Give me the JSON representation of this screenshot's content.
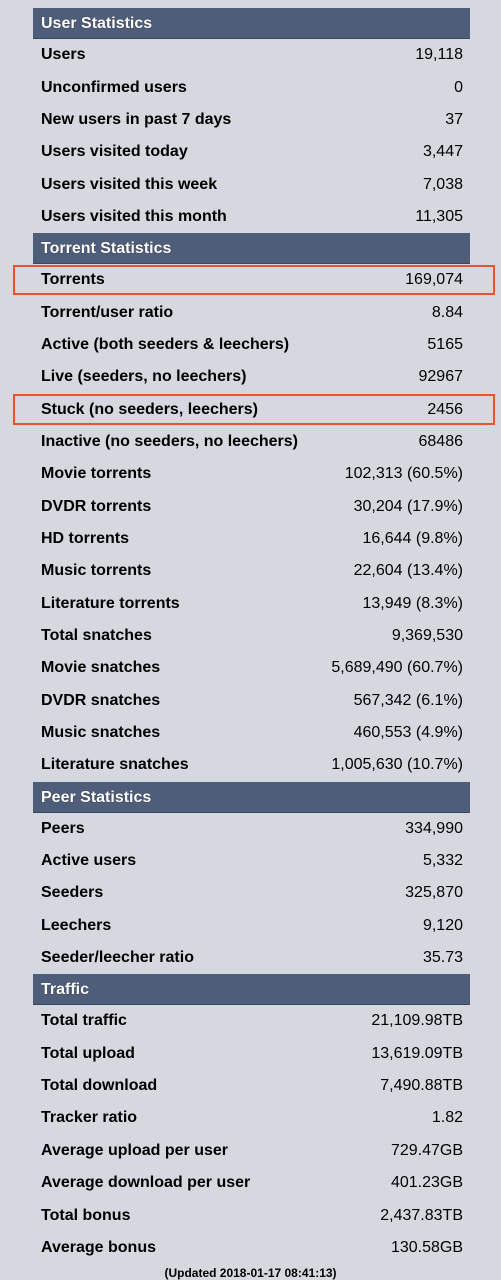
{
  "sections": [
    {
      "title": "User Statistics",
      "rows": [
        {
          "label": "Users",
          "value": "19,118"
        },
        {
          "label": "Unconfirmed users",
          "value": "0"
        },
        {
          "label": "New users in past 7 days",
          "value": "37"
        },
        {
          "label": "Users visited today",
          "value": "3,447"
        },
        {
          "label": "Users visited this week",
          "value": "7,038"
        },
        {
          "label": "Users visited this month",
          "value": "11,305"
        }
      ]
    },
    {
      "title": "Torrent Statistics",
      "rows": [
        {
          "label": "Torrents",
          "value": "169,074",
          "highlight": true
        },
        {
          "label": "Torrent/user ratio",
          "value": "8.84"
        },
        {
          "label": "Active (both seeders & leechers)",
          "value": "5165"
        },
        {
          "label": "Live (seeders, no leechers)",
          "value": "92967"
        },
        {
          "label": "Stuck (no seeders, leechers)",
          "value": "2456",
          "highlight": true
        },
        {
          "label": "Inactive (no seeders, no leechers)",
          "value": "68486"
        },
        {
          "label": "Movie torrents",
          "value": "102,313 (60.5%)"
        },
        {
          "label": "DVDR torrents",
          "value": "30,204 (17.9%)"
        },
        {
          "label": "HD torrents",
          "value": "16,644 (9.8%)"
        },
        {
          "label": "Music torrents",
          "value": "22,604 (13.4%)"
        },
        {
          "label": "Literature torrents",
          "value": "13,949 (8.3%)"
        },
        {
          "label": "Total snatches",
          "value": "9,369,530"
        },
        {
          "label": "Movie snatches",
          "value": "5,689,490 (60.7%)"
        },
        {
          "label": "DVDR snatches",
          "value": "567,342 (6.1%)"
        },
        {
          "label": "Music snatches",
          "value": "460,553 (4.9%)"
        },
        {
          "label": "Literature snatches",
          "value": "1,005,630 (10.7%)"
        }
      ]
    },
    {
      "title": "Peer Statistics",
      "rows": [
        {
          "label": "Peers",
          "value": "334,990"
        },
        {
          "label": "Active users",
          "value": "5,332"
        },
        {
          "label": "Seeders",
          "value": "325,870"
        },
        {
          "label": "Leechers",
          "value": "9,120"
        },
        {
          "label": "Seeder/leecher ratio",
          "value": "35.73"
        }
      ]
    },
    {
      "title": "Traffic",
      "rows": [
        {
          "label": "Total traffic",
          "value": "21,109.98TB"
        },
        {
          "label": "Total upload",
          "value": "13,619.09TB"
        },
        {
          "label": "Total download",
          "value": "7,490.88TB"
        },
        {
          "label": "Tracker ratio",
          "value": "1.82"
        },
        {
          "label": "Average upload per user",
          "value": "729.47GB"
        },
        {
          "label": "Average download per user",
          "value": "401.23GB"
        },
        {
          "label": "Total bonus",
          "value": "2,437.83TB"
        },
        {
          "label": "Average bonus",
          "value": "130.58GB"
        }
      ]
    }
  ],
  "footer": "(Updated 2018-01-17 08:41:13)",
  "colors": {
    "page_background": "#d5d9df",
    "header_background": "#4e5d79",
    "highlight_border": "#e8542f"
  }
}
